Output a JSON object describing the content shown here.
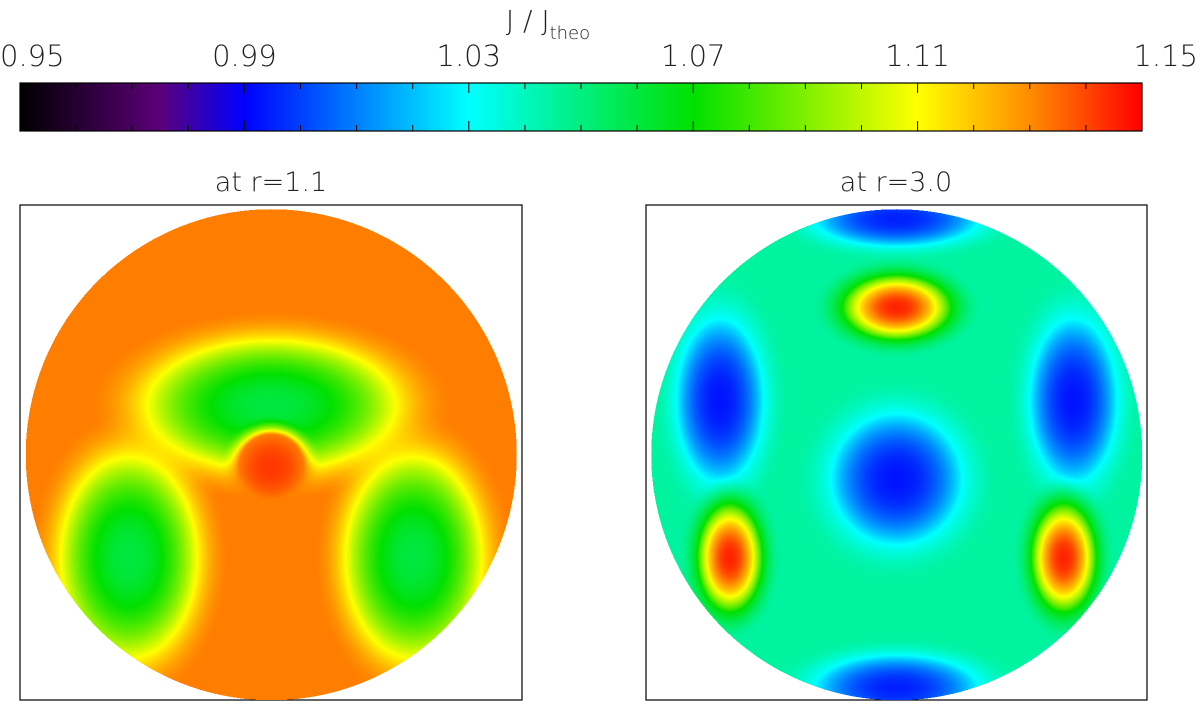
{
  "chart_data": {
    "type": "heatmap",
    "colorbar": {
      "title_main": "J / J",
      "title_sub": "theo",
      "min": 0.95,
      "max": 1.15,
      "ticks": [
        0.95,
        0.99,
        1.03,
        1.07,
        1.11,
        1.15
      ],
      "tick_labels": [
        "0.95",
        "0.99",
        "1.03",
        "1.07",
        "1.11",
        "1.15"
      ],
      "colormap": [
        {
          "v": 0.95,
          "color": "#000000"
        },
        {
          "v": 0.975,
          "color": "#5b0078"
        },
        {
          "v": 0.99,
          "color": "#0000ff"
        },
        {
          "v": 1.03,
          "color": "#00ffff"
        },
        {
          "v": 1.07,
          "color": "#00e000"
        },
        {
          "v": 1.11,
          "color": "#ffff00"
        },
        {
          "v": 1.13,
          "color": "#ff8c00"
        },
        {
          "v": 1.15,
          "color": "#ff0000"
        }
      ]
    },
    "panels": [
      {
        "title": "at r=1.1",
        "background_value": 1.132,
        "features": [
          {
            "name": "top-spot",
            "shape": "ellipse",
            "value": 1.06,
            "edge_value": 1.102,
            "lon": 0,
            "lat": 0.2,
            "rx_deg": 42,
            "ry_deg": 22
          },
          {
            "name": "lower-left-spot",
            "shape": "ellipse",
            "value": 1.06,
            "edge_value": 1.102,
            "lon": -0.58,
            "lat": -0.42,
            "rx_deg": 23,
            "ry_deg": 34
          },
          {
            "name": "lower-right-spot",
            "shape": "ellipse",
            "value": 1.06,
            "edge_value": 1.102,
            "lon": 0.58,
            "lat": -0.42,
            "rx_deg": 23,
            "ry_deg": 34
          },
          {
            "name": "center-peak",
            "shape": "ellipse",
            "value": 1.142,
            "edge_value": 1.132,
            "lon": 0,
            "lat": -0.05,
            "rx_deg": 12,
            "ry_deg": 12
          }
        ]
      },
      {
        "title": "at r=3.0",
        "background_value": 1.045,
        "features": [
          {
            "name": "center-low",
            "shape": "ellipse",
            "value": 0.993,
            "edge_value": 1.03,
            "lon": 0,
            "lat": -0.1,
            "rx_deg": 24,
            "ry_deg": 24
          },
          {
            "name": "upper-left-low",
            "shape": "ellipse",
            "value": 0.993,
            "edge_value": 1.03,
            "lon": -0.72,
            "lat": 0.22,
            "rx_deg": 16,
            "ry_deg": 30
          },
          {
            "name": "upper-right-low",
            "shape": "ellipse",
            "value": 0.993,
            "edge_value": 1.03,
            "lon": 0.72,
            "lat": 0.22,
            "rx_deg": 16,
            "ry_deg": 30
          },
          {
            "name": "bottom-low",
            "shape": "ellipse",
            "value": 0.995,
            "edge_value": 1.03,
            "lon": 0,
            "lat": -0.95,
            "rx_deg": 30,
            "ry_deg": 12
          },
          {
            "name": "top-low",
            "shape": "ellipse",
            "value": 0.995,
            "edge_value": 1.03,
            "lon": 0,
            "lat": 0.96,
            "rx_deg": 30,
            "ry_deg": 10
          },
          {
            "name": "top-high",
            "shape": "ellipse",
            "value": 1.145,
            "edge_value": 1.07,
            "lon": 0,
            "lat": 0.6,
            "rx_deg": 20,
            "ry_deg": 12
          },
          {
            "name": "lower-left-high",
            "shape": "ellipse",
            "value": 1.145,
            "edge_value": 1.07,
            "lon": -0.68,
            "lat": -0.42,
            "rx_deg": 12,
            "ry_deg": 20
          },
          {
            "name": "lower-right-high",
            "shape": "ellipse",
            "value": 1.145,
            "edge_value": 1.07,
            "lon": 0.68,
            "lat": -0.42,
            "rx_deg": 12,
            "ry_deg": 20
          }
        ]
      }
    ]
  }
}
